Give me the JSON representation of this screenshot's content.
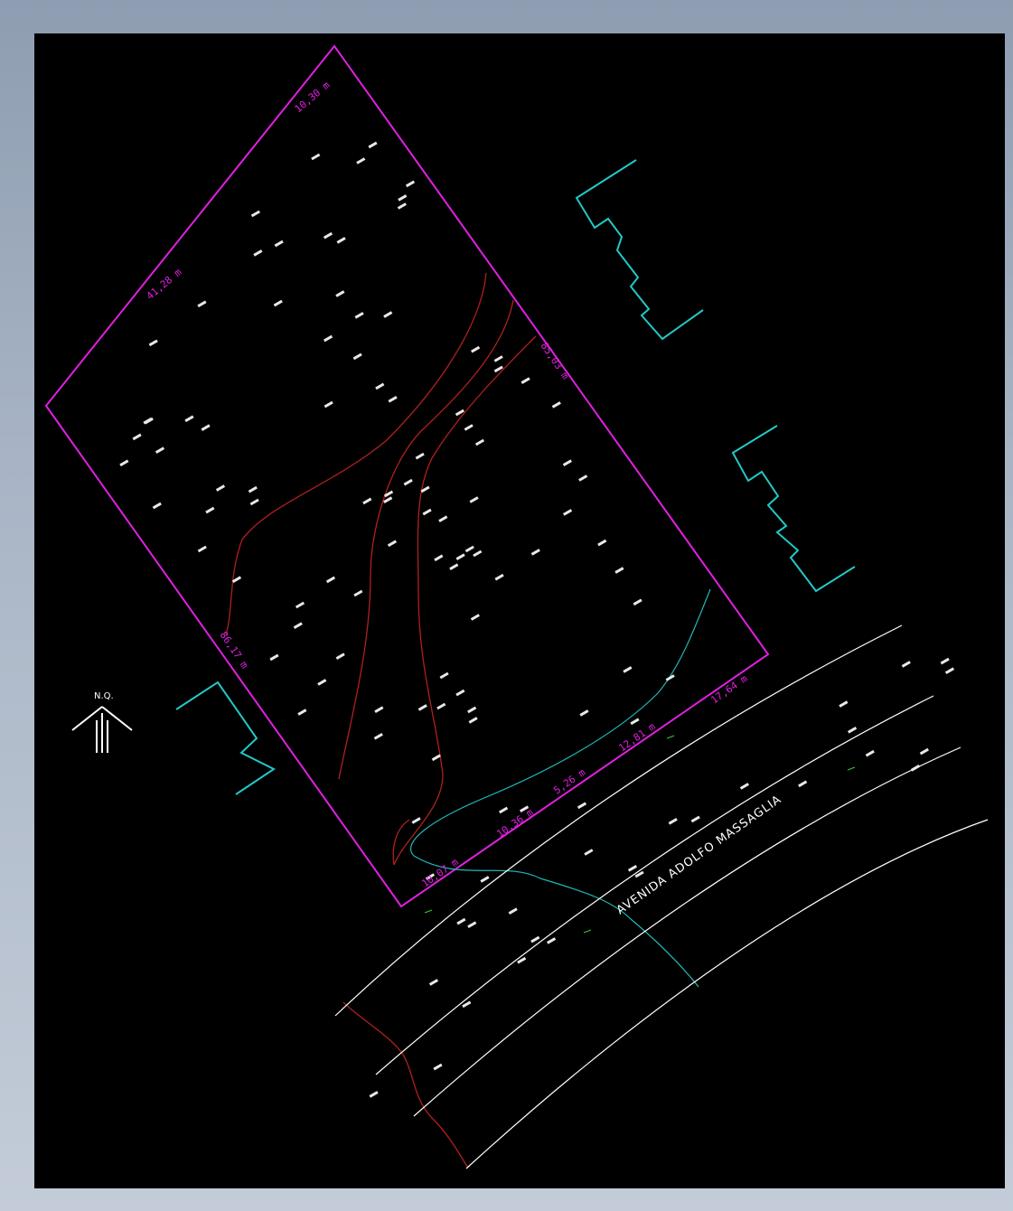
{
  "drawing": {
    "street_name": "AVENIDA ADOLFO MASSAGLIA",
    "north_label": "N.Q.",
    "colors": {
      "background": "#000000",
      "frame": "#a6b2c4",
      "boundary": "#e020e0",
      "road_lines": "#ffffff",
      "contour_lines": "#b0201e",
      "water_course": "#20b8b8",
      "neighbor_buildings": "#22c8c8",
      "spot_elevations": "#ffffff",
      "road_markers": "#30d030"
    },
    "icons": [
      "north-arrow-icon"
    ]
  },
  "dimensions": [
    {
      "id": "top-edge",
      "text": "10,30 m"
    },
    {
      "id": "upper-left-edge",
      "text": "41,28 m"
    },
    {
      "id": "right-edge",
      "text": "85,03 m"
    },
    {
      "id": "lower-left-edge",
      "text": "86,17 m"
    },
    {
      "id": "front-1",
      "text": "17,64 m"
    },
    {
      "id": "front-2",
      "text": "12,81 m"
    },
    {
      "id": "front-3",
      "text": "5,26 m"
    },
    {
      "id": "front-4",
      "text": "10,36 m"
    },
    {
      "id": "front-5",
      "text": "10,07 m"
    }
  ],
  "spot_elevations_count": 120
}
